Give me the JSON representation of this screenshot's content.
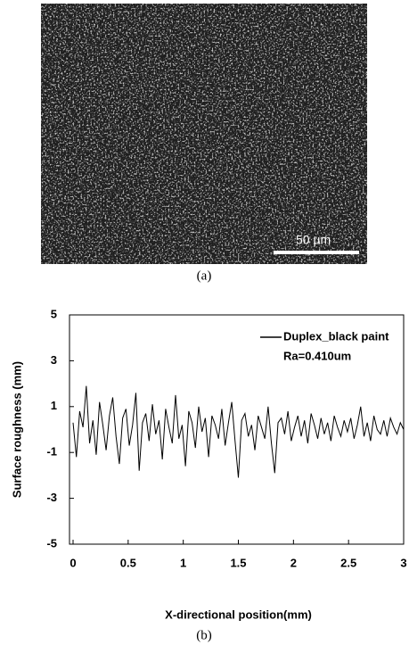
{
  "image": {
    "scale_bar": "50 µm",
    "caption": "(a)"
  },
  "chart_data": {
    "type": "line",
    "x_label": "X-directional position(mm)",
    "y_label": "Surface roughness (mm)",
    "annotation": "Ra=0.410um",
    "caption": "(b)",
    "legend": "upper right",
    "xlim": [
      0,
      3
    ],
    "xticks": [
      0,
      0.5,
      1,
      1.5,
      2,
      2.5,
      3
    ],
    "ylim": [
      -5,
      5
    ],
    "yticks": [
      5,
      3,
      1,
      -1,
      -3,
      -5
    ],
    "grid": false,
    "x": [
      0,
      0.03,
      0.06,
      0.09,
      0.12,
      0.15,
      0.18,
      0.21,
      0.24,
      0.27,
      0.3,
      0.33,
      0.36,
      0.39,
      0.42,
      0.45,
      0.48,
      0.51,
      0.54,
      0.57,
      0.6,
      0.63,
      0.66,
      0.69,
      0.72,
      0.75,
      0.78,
      0.81,
      0.84,
      0.87,
      0.9,
      0.93,
      0.96,
      0.99,
      1.02,
      1.05,
      1.08,
      1.11,
      1.14,
      1.17,
      1.2,
      1.23,
      1.26,
      1.29,
      1.32,
      1.35,
      1.38,
      1.41,
      1.44,
      1.47,
      1.5,
      1.53,
      1.56,
      1.59,
      1.62,
      1.65,
      1.68,
      1.71,
      1.74,
      1.77,
      1.8,
      1.83,
      1.86,
      1.89,
      1.92,
      1.95,
      1.98,
      2.01,
      2.04,
      2.07,
      2.1,
      2.13,
      2.16,
      2.19,
      2.22,
      2.25,
      2.28,
      2.31,
      2.34,
      2.37,
      2.4,
      2.43,
      2.46,
      2.49,
      2.52,
      2.55,
      2.58,
      2.61,
      2.64,
      2.67,
      2.7,
      2.73,
      2.76,
      2.79,
      2.82,
      2.85,
      2.88,
      2.91,
      2.94,
      2.97,
      3
    ],
    "series": [
      {
        "name": "Duplex_black paint",
        "color": "#000000",
        "values": [
          0.3,
          -1.2,
          0.8,
          0.1,
          1.9,
          -0.6,
          0.4,
          -1.1,
          1.2,
          0.2,
          -0.9,
          0.6,
          1.4,
          -0.3,
          -1.5,
          0.5,
          0.9,
          -0.7,
          0.2,
          1.6,
          -1.8,
          0.3,
          0.7,
          -0.5,
          1.1,
          -0.2,
          0.4,
          -1.3,
          0.9,
          0.1,
          -0.6,
          1.5,
          -0.4,
          0.2,
          -1.6,
          0.8,
          0.3,
          -0.8,
          1.0,
          -0.1,
          0.5,
          -1.2,
          0.6,
          0.2,
          -0.4,
          0.9,
          -0.7,
          0.3,
          1.2,
          -0.5,
          -2.1,
          0.4,
          0.7,
          -0.3,
          0.2,
          -0.9,
          0.6,
          0.1,
          -0.4,
          1.0,
          -0.6,
          -1.9,
          0.3,
          0.5,
          -0.2,
          0.8,
          -0.5,
          0.1,
          0.6,
          -0.3,
          0.4,
          -0.6,
          0.7,
          0.2,
          -0.4,
          0.5,
          -0.2,
          0.3,
          -0.5,
          0.6,
          0.1,
          -0.3,
          0.4,
          -0.1,
          0.5,
          -0.4,
          0.2,
          1.0,
          -0.3,
          0.3,
          -0.5,
          0.6,
          0.0,
          -0.2,
          0.4,
          -0.3,
          0.5,
          0.1,
          -0.2,
          0.3,
          0.0
        ]
      }
    ]
  }
}
